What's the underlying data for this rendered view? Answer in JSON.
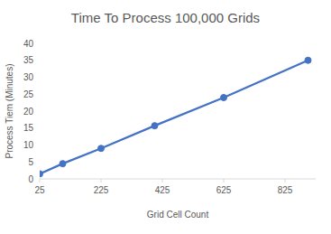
{
  "chart_data": {
    "type": "line",
    "title": "Time To Process 100,000 Grids",
    "x_label": "Grid Cell Count",
    "y_label": "Process Tiem (Minutes)",
    "x": [
      25,
      100,
      225,
      400,
      625,
      900
    ],
    "values": [
      1.5,
      4.5,
      9,
      15.7,
      24,
      35
    ],
    "color": "#4472c4",
    "marker": "circle",
    "xlim": [
      25,
      925
    ],
    "xticks": [
      25,
      225,
      425,
      625,
      825
    ],
    "ylim": [
      0,
      40
    ],
    "yticks": [
      0,
      5,
      10,
      15,
      20,
      25,
      30,
      35,
      40
    ],
    "grid": false
  }
}
